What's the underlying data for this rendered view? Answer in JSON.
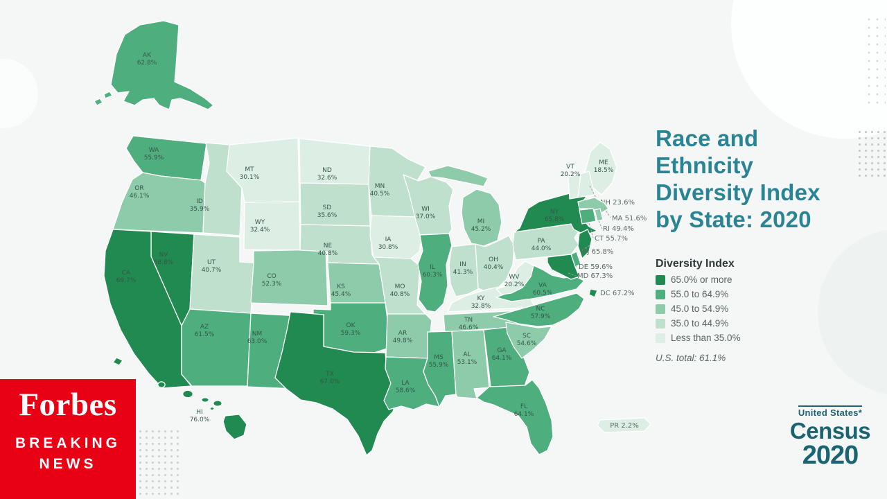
{
  "colors": {
    "title_teal": "#2a8494",
    "census_teal": "#1b6471",
    "forbes_red": "#e80014",
    "background": "#f5f7f7"
  },
  "title": {
    "text": "Race and Ethnicity Diversity Index by State: 2020"
  },
  "legend": {
    "heading": "Diversity Index",
    "items": [
      {
        "min": 65,
        "label": "65.0% or more",
        "color": "#218a50"
      },
      {
        "min": 55,
        "label": "55.0 to 64.9%",
        "color": "#4fae7e"
      },
      {
        "min": 45,
        "label": "45.0 to 54.9%",
        "color": "#8ecbaa"
      },
      {
        "min": 35,
        "label": "35.0 to 44.9%",
        "color": "#bfe0cd"
      },
      {
        "min": 0,
        "label": "Less than 35.0%",
        "color": "#ddeee4"
      }
    ],
    "us_total": "U.S. total: 61.1%"
  },
  "chart_data": {
    "type": "choropleth",
    "title": "Race and Ethnicity Diversity Index by State: 2020",
    "unit": "%",
    "us_total": 61.1,
    "legend_bins": [
      "65.0% or more",
      "55.0 to 64.9%",
      "45.0 to 54.9%",
      "35.0 to 44.9%",
      "Less than 35.0%"
    ],
    "values": {
      "AK": 62.8,
      "WA": 55.9,
      "OR": 46.1,
      "CA": 69.7,
      "NV": 68.8,
      "ID": 35.9,
      "MT": 30.1,
      "WY": 32.4,
      "UT": 40.7,
      "CO": 52.3,
      "AZ": 61.5,
      "NM": 63.0,
      "ND": 32.6,
      "SD": 35.6,
      "NE": 40.8,
      "KS": 45.4,
      "OK": 59.3,
      "TX": 67.0,
      "MN": 40.5,
      "IA": 30.8,
      "MO": 40.8,
      "AR": 49.8,
      "LA": 58.6,
      "WI": 37.0,
      "IL": 60.3,
      "MI": 45.2,
      "IN": 41.3,
      "OH": 40.4,
      "KY": 32.8,
      "TN": 46.6,
      "MS": 55.9,
      "AL": 53.1,
      "GA": 64.1,
      "SC": 54.6,
      "NC": 57.9,
      "VA": 60.5,
      "WV": 20.2,
      "PA": 44.0,
      "NY": 65.8,
      "VT": 20.2,
      "NH": 23.6,
      "ME": 18.5,
      "MA": 51.6,
      "RI": 49.4,
      "CT": 55.7,
      "NJ": 65.8,
      "DE": 59.6,
      "MD": 67.3,
      "DC": 67.2,
      "FL": 64.1,
      "HI": 76.0,
      "PR": 2.2
    }
  },
  "branding": {
    "forbes": {
      "name": "Forbes",
      "sub_line1": "BREAKING",
      "sub_line2": "NEWS"
    },
    "census": {
      "top": "United States*",
      "mid": "Census",
      "year": "2020"
    }
  }
}
